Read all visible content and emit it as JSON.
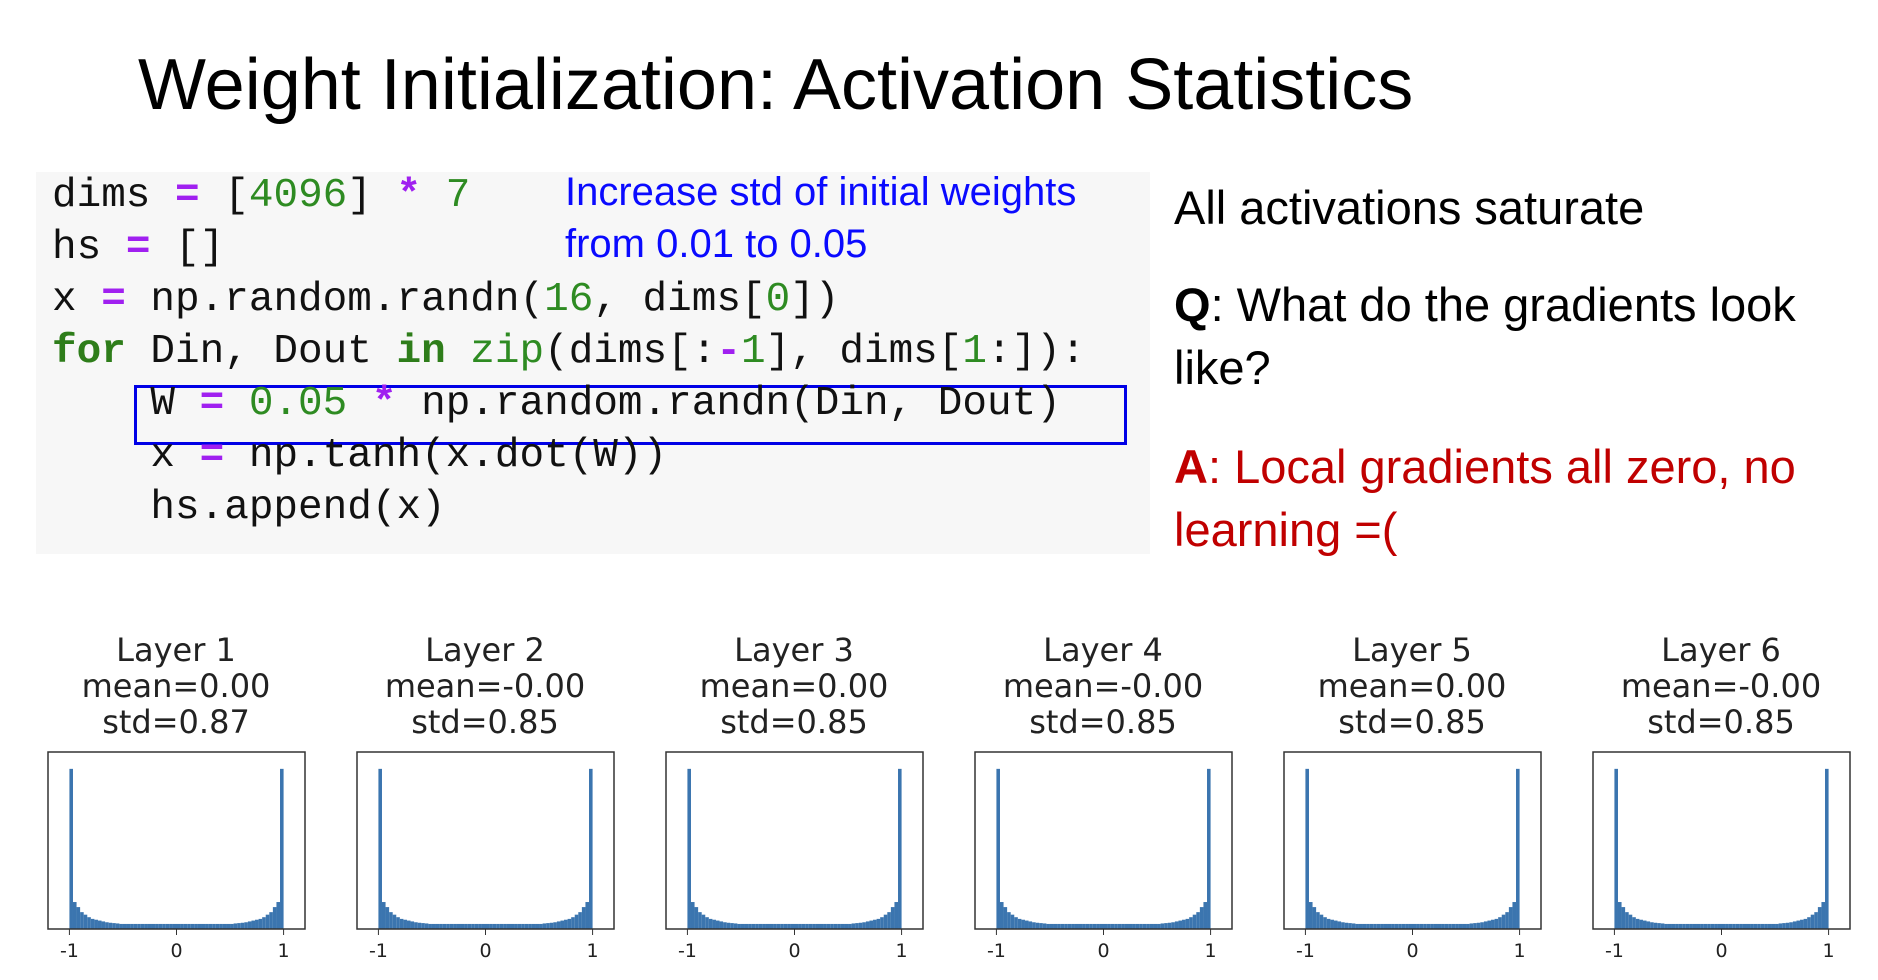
{
  "slide": {
    "title": "Weight Initialization: Activation Statistics"
  },
  "code": {
    "lines": [
      [
        [
          "dims ",
          ""
        ],
        [
          "=",
          "op"
        ],
        [
          " [",
          ""
        ],
        [
          "4096",
          "num"
        ],
        [
          "] ",
          ""
        ],
        [
          "*",
          "op"
        ],
        [
          " ",
          ""
        ],
        [
          "7",
          "num"
        ]
      ],
      [
        [
          "hs ",
          ""
        ],
        [
          "=",
          "op"
        ],
        [
          " []",
          ""
        ]
      ],
      [
        [
          "x ",
          ""
        ],
        [
          "=",
          "op"
        ],
        [
          " np.random.randn(",
          ""
        ],
        [
          "16",
          "num"
        ],
        [
          ", dims[",
          ""
        ],
        [
          "0",
          "num"
        ],
        [
          "])",
          ""
        ]
      ],
      [
        [
          "for",
          "kw"
        ],
        [
          " Din, Dout ",
          ""
        ],
        [
          "in",
          "kw"
        ],
        [
          " ",
          ""
        ],
        [
          "zip",
          "bi"
        ],
        [
          "(dims[:",
          ""
        ],
        [
          "-",
          "op"
        ],
        [
          "1",
          "num"
        ],
        [
          "], dims[",
          ""
        ],
        [
          "1",
          "num"
        ],
        [
          ":]):",
          ""
        ]
      ],
      [
        [
          "    W ",
          ""
        ],
        [
          "=",
          "op"
        ],
        [
          " ",
          ""
        ],
        [
          "0.05",
          "num"
        ],
        [
          " ",
          ""
        ],
        [
          "*",
          "op"
        ],
        [
          " np.random.randn(Din, Dout)",
          ""
        ]
      ],
      [
        [
          "    x ",
          ""
        ],
        [
          "=",
          "op"
        ],
        [
          " np.tanh(x.dot(W))",
          ""
        ]
      ],
      [
        [
          "    hs.append(x)",
          ""
        ]
      ]
    ],
    "annotation_line1": "Increase std of initial weights",
    "annotation_line2": "from 0.01 to 0.05",
    "highlight_color": "#0000e6"
  },
  "right": {
    "statement": "All activations saturate",
    "q_label": "Q",
    "q_text_1": ": What do the gradients look",
    "q_text_2": "like?",
    "a_label": "A",
    "a_text_1": ": Local gradients all zero, no",
    "a_text_2": "learning =(",
    "a_color": "#c00000"
  },
  "chart_data": {
    "type": "bar",
    "description_kind": "histogram",
    "xlim": [
      -1.2,
      1.2
    ],
    "ylim": [
      0,
      1.05
    ],
    "xticks": [
      "-1",
      "0",
      "1"
    ],
    "xtick_values": [
      -1,
      0,
      1
    ],
    "bin_range": [
      -1,
      1
    ],
    "bar_color": "#3b75af",
    "relative_counts": [
      0.95,
      0.16,
      0.13,
      0.1,
      0.085,
      0.07,
      0.06,
      0.055,
      0.05,
      0.045,
      0.04,
      0.037,
      0.035,
      0.033,
      0.03,
      0.03,
      0.03,
      0.03,
      0.03,
      0.03,
      0.03,
      0.03,
      0.03,
      0.03,
      0.03,
      0.03,
      0.03,
      0.03,
      0.03,
      0.03,
      0.03,
      0.03,
      0.03,
      0.03,
      0.03,
      0.03,
      0.03,
      0.03,
      0.03,
      0.03,
      0.03,
      0.03,
      0.03,
      0.03,
      0.03,
      0.03,
      0.033,
      0.035,
      0.037,
      0.04,
      0.045,
      0.05,
      0.055,
      0.06,
      0.07,
      0.085,
      0.1,
      0.13,
      0.16,
      0.95
    ],
    "panels": [
      {
        "title": "Layer 1",
        "mean": "mean=0.00",
        "std": "std=0.87"
      },
      {
        "title": "Layer 2",
        "mean": "mean=-0.00",
        "std": "std=0.85"
      },
      {
        "title": "Layer 3",
        "mean": "mean=0.00",
        "std": "std=0.85"
      },
      {
        "title": "Layer 4",
        "mean": "mean=-0.00",
        "std": "std=0.85"
      },
      {
        "title": "Layer 5",
        "mean": "mean=0.00",
        "std": "std=0.85"
      },
      {
        "title": "Layer 6",
        "mean": "mean=-0.00",
        "std": "std=0.85"
      }
    ]
  }
}
